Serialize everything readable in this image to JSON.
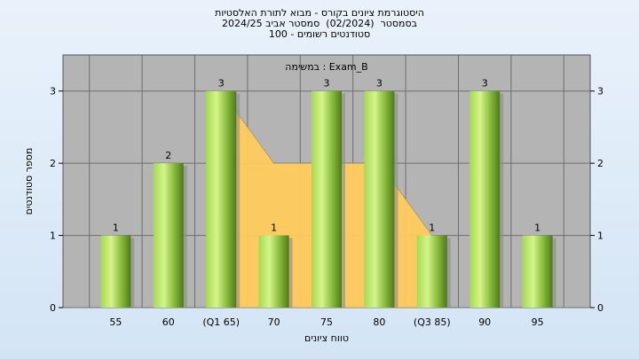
{
  "chart_data": {
    "type": "bar",
    "title_lines": [
      "היסטוגרמת ציונים בקורס - מבוא לתורת האלסטיות",
      "בסמסטר  (02/2024)  סמסטר אביב 2024/25",
      "סטודנטים רשומים - 100"
    ],
    "legend": "במשימה : Exam_B",
    "categories": [
      "55",
      "60",
      "(Q1 65)",
      "70",
      "75",
      "80",
      "(Q3 85)",
      "90",
      "95"
    ],
    "values": [
      1,
      2,
      3,
      1,
      3,
      3,
      1,
      3,
      1
    ],
    "area_series": {
      "points": [
        {
          "category": "(Q1 65)",
          "value": 3
        },
        {
          "category": "70",
          "value": 2
        },
        {
          "category": "75",
          "value": 2
        },
        {
          "category": "80",
          "value": 2
        },
        {
          "category": "(Q3 85)",
          "value": 1
        }
      ],
      "color": "#ffcc5c"
    },
    "xlabel": "טווח ציונים",
    "ylabel": "מספר סטודנטים",
    "ylim": [
      0,
      3.5
    ],
    "yticks": [
      0,
      1,
      2,
      3
    ],
    "grid": true,
    "colors": {
      "plot_background": "#b4b4b4",
      "bar_light": "#c9f07a",
      "bar_dark": "#5c8a1e",
      "grid": "#6e6e6e"
    }
  }
}
